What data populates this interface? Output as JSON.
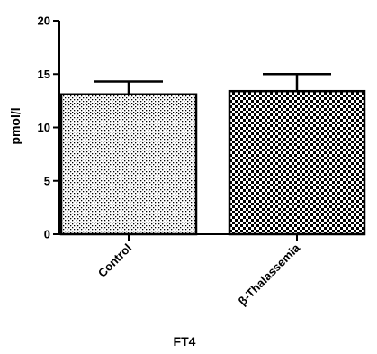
{
  "chart_data": {
    "type": "bar",
    "title": "FT4",
    "xlabel": "",
    "ylabel": "pmol/l",
    "ylim": [
      0,
      20
    ],
    "yticks": [
      0,
      5,
      10,
      15,
      20
    ],
    "categories": [
      "Control",
      "β-Thalassemia"
    ],
    "values": [
      13.1,
      13.4
    ],
    "errors": [
      1.2,
      1.6
    ],
    "patterns": [
      "fine-dots",
      "checkerboard"
    ],
    "grid": false,
    "legend": "none"
  },
  "colors": {
    "axis": "#000000",
    "fill": "#000000",
    "background": "#ffffff"
  }
}
